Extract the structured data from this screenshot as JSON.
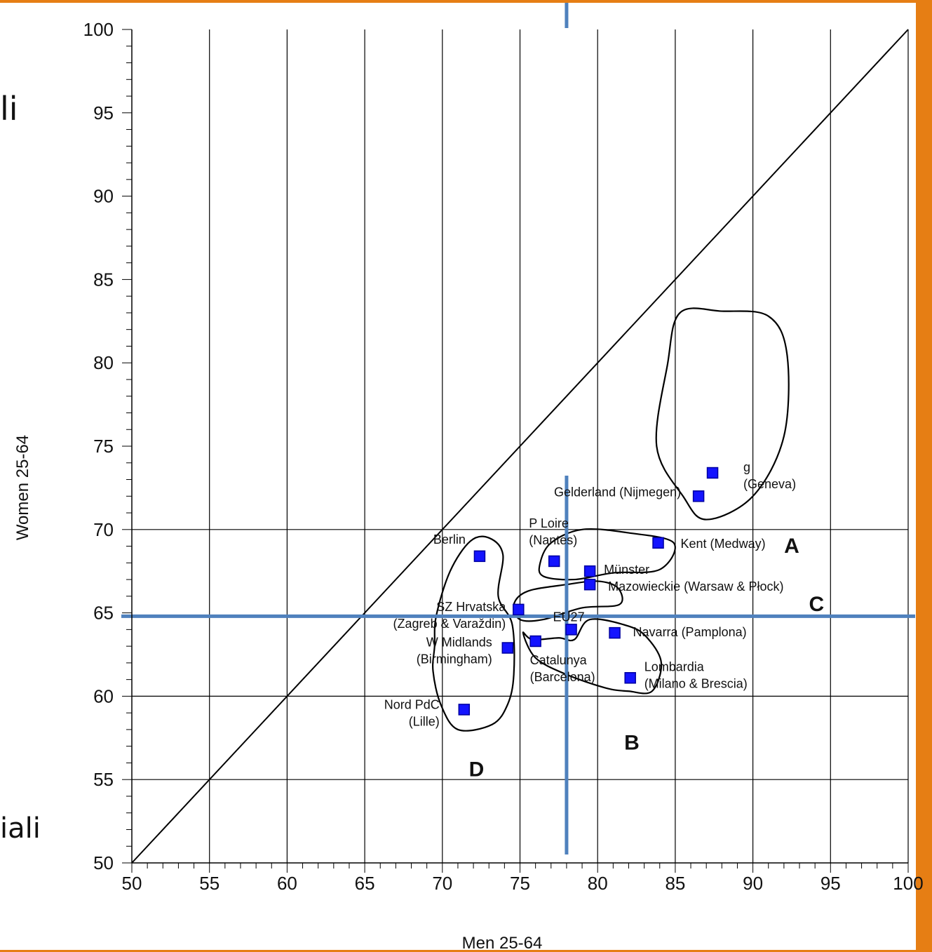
{
  "colors": {
    "frame": "#e67e14",
    "point": "#1414ff",
    "reference_line": "#4f81bd",
    "grid": "#000000"
  },
  "background_text": {
    "fragment_top": "li",
    "fragment_bottom": "iali"
  },
  "chart_data": {
    "type": "scatter",
    "xlabel": "Men 25-64",
    "ylabel": "Women 25-64",
    "xlim": [
      50,
      100
    ],
    "ylim": [
      50,
      100
    ],
    "x_ticks": [
      50,
      55,
      60,
      65,
      70,
      75,
      80,
      85,
      90,
      95,
      100
    ],
    "y_ticks": [
      50,
      55,
      60,
      65,
      70,
      75,
      80,
      85,
      90,
      95,
      100
    ],
    "x_tick_labels": [
      "50",
      "55",
      "60",
      "65",
      "70",
      "75",
      "80",
      "85",
      "90",
      "95",
      "100"
    ],
    "y_tick_labels": [
      "50",
      "55",
      "60",
      "65",
      "70",
      "75",
      "80",
      "85",
      "90",
      "95",
      "100"
    ],
    "grid": "vertical lines at every x tick; horizontal lines at 55, 60, 70",
    "diagonal_line": [
      [
        50,
        50
      ],
      [
        100,
        100
      ]
    ],
    "reference_lines": {
      "x": 78,
      "y": 64.8
    },
    "points": [
      {
        "label": "g (Geneva)",
        "label_lines": [
          "g",
          "(Geneva)"
        ],
        "x": 87.4,
        "y": 73.4
      },
      {
        "label": "Gelderland (Nijmegen)",
        "label_lines": [
          "Gelderland (Nijmegen)"
        ],
        "x": 86.5,
        "y": 72.0
      },
      {
        "label": "Kent (Medway)",
        "label_lines": [
          "Kent (Medway)"
        ],
        "x": 83.9,
        "y": 69.2
      },
      {
        "label": "P Loire (Nantes)",
        "label_lines": [
          "P Loire",
          "(Nantes)"
        ],
        "x": 77.2,
        "y": 68.1
      },
      {
        "label": "Münster",
        "label_lines": [
          "Münster"
        ],
        "x": 79.5,
        "y": 67.5
      },
      {
        "label": "Mazowieckie (Warsaw & Płock)",
        "label_lines": [
          "Mazowieckie (Warsaw & Płock)"
        ],
        "x": 79.5,
        "y": 66.7
      },
      {
        "label": "Berlin",
        "label_lines": [
          "Berlin"
        ],
        "x": 72.4,
        "y": 68.4
      },
      {
        "label": "SZ Hrvatska (Zagreb & Varaždin)",
        "label_lines": [
          "SZ Hrvatska",
          "(Zagreb & Varaždin)"
        ],
        "x": 74.9,
        "y": 65.2
      },
      {
        "label": "EU27",
        "label_lines": [
          "EU27"
        ],
        "x": 78.3,
        "y": 64.0
      },
      {
        "label": "Navarra (Pamplona)",
        "label_lines": [
          "Navarra (Pamplona)"
        ],
        "x": 81.1,
        "y": 63.8
      },
      {
        "label": "W Midlands (Birmingham)",
        "label_lines": [
          "W Midlands",
          "(Birmingham)"
        ],
        "x": 74.2,
        "y": 62.9
      },
      {
        "label": "Catalunya (Barcelona)",
        "label_lines": [
          "Catalunya",
          "(Barcelona)"
        ],
        "x": 76.0,
        "y": 63.3
      },
      {
        "label": "Lombardia (Milano & Brescia)",
        "label_lines": [
          "Lombardia",
          "(Milano & Brescia)"
        ],
        "x": 82.1,
        "y": 61.1
      },
      {
        "label": "Nord PdC (Lille)",
        "label_lines": [
          "Nord PdC",
          "(Lille)"
        ],
        "x": 71.4,
        "y": 59.2
      }
    ],
    "group_labels": [
      {
        "label": "A",
        "x": 92.5,
        "y": 68.6
      },
      {
        "label": "B",
        "x": 82.2,
        "y": 56.8
      },
      {
        "label": "C",
        "x": 94.1,
        "y": 65.1
      },
      {
        "label": "D",
        "x": 72.2,
        "y": 55.2
      }
    ],
    "cluster_outlines": [
      {
        "name": "cluster-top",
        "path": [
          [
            84.5,
            79.9
          ],
          [
            85.3,
            83.0
          ],
          [
            88.0,
            83.1
          ],
          [
            91.0,
            82.8
          ],
          [
            92.2,
            80.5
          ],
          [
            92.0,
            75.6
          ],
          [
            90.0,
            72.0
          ],
          [
            87.0,
            70.6
          ],
          [
            85.5,
            72.0
          ],
          [
            83.8,
            75.0
          ],
          [
            84.5,
            79.9
          ]
        ]
      },
      {
        "name": "cluster-a",
        "path": [
          [
            76.3,
            68.0
          ],
          [
            77.0,
            69.2
          ],
          [
            79.0,
            70.0
          ],
          [
            82.0,
            69.8
          ],
          [
            84.9,
            69.2
          ],
          [
            84.0,
            67.6
          ],
          [
            81.0,
            67.4
          ],
          [
            78.5,
            67.0
          ],
          [
            76.5,
            67.2
          ],
          [
            76.3,
            68.0
          ]
        ]
      },
      {
        "name": "cluster-c",
        "path": [
          [
            74.6,
            65.5
          ],
          [
            75.5,
            66.3
          ],
          [
            78.0,
            66.7
          ],
          [
            80.0,
            66.9
          ],
          [
            81.3,
            66.5
          ],
          [
            81.4,
            65.5
          ],
          [
            79.0,
            65.3
          ],
          [
            76.5,
            64.6
          ],
          [
            75.0,
            64.6
          ],
          [
            74.6,
            65.5
          ]
        ]
      },
      {
        "name": "cluster-b",
        "path": [
          [
            75.2,
            63.8
          ],
          [
            75.8,
            63.4
          ],
          [
            77.5,
            63.5
          ],
          [
            78.5,
            63.4
          ],
          [
            79.5,
            64.6
          ],
          [
            82.0,
            64.2
          ],
          [
            83.2,
            63.5
          ],
          [
            84.1,
            62.0
          ],
          [
            83.5,
            60.3
          ],
          [
            82.0,
            60.3
          ],
          [
            80.5,
            60.5
          ],
          [
            78.0,
            61.3
          ],
          [
            76.0,
            62.3
          ],
          [
            75.2,
            63.8
          ]
        ]
      },
      {
        "name": "cluster-d",
        "path": [
          [
            69.5,
            63.0
          ],
          [
            69.6,
            64.8
          ],
          [
            70.5,
            67.5
          ],
          [
            71.8,
            69.3
          ],
          [
            73.0,
            69.5
          ],
          [
            73.9,
            68.5
          ],
          [
            73.6,
            66.0
          ],
          [
            74.5,
            64.3
          ],
          [
            74.6,
            61.3
          ],
          [
            74.2,
            59.5
          ],
          [
            73.2,
            58.3
          ],
          [
            71.0,
            58.0
          ],
          [
            69.9,
            59.5
          ],
          [
            69.4,
            61.5
          ],
          [
            69.5,
            63.0
          ]
        ]
      }
    ]
  }
}
